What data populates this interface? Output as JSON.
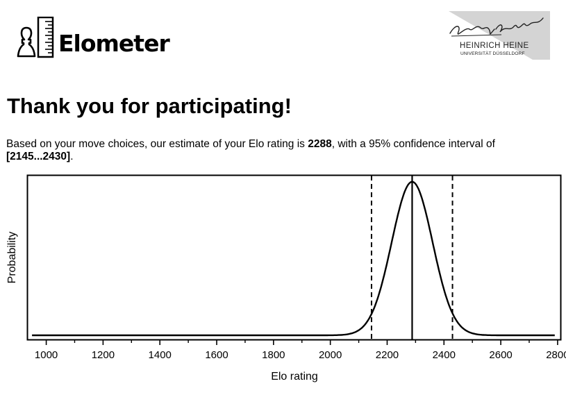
{
  "header": {
    "logo_text": "Elometer",
    "university_name": "HEINRICH HEINE",
    "university_sub": "UNIVERSITÄT DÜSSELDORF",
    "university_signature": "Heinrich Heine"
  },
  "main": {
    "title": "Thank you for participating!",
    "result_prefix": "Based on your move choices, our estimate of your Elo rating is ",
    "estimate": "2288",
    "result_middle": ", with a 95% confidence interval of ",
    "interval": "[2145...2430]",
    "result_suffix": "."
  },
  "chart_data": {
    "type": "line",
    "title": "",
    "xlabel": "Elo rating",
    "ylabel": "Probability",
    "xlim": [
      935,
      2810
    ],
    "ylim": [
      0,
      1.04
    ],
    "xticks": [
      1000,
      1200,
      1400,
      1600,
      1800,
      2000,
      2200,
      2400,
      2600,
      2800
    ],
    "minor_ticks_every": 100,
    "yticks": [],
    "grid": false,
    "series": [
      {
        "name": "",
        "style": "solid",
        "distribution": "normal",
        "mean": 2288,
        "sd": 72,
        "x": [
          950,
          2000,
          2050,
          2100,
          2145,
          2180,
          2220,
          2250,
          2288,
          2320,
          2360,
          2400,
          2430,
          2480,
          2530,
          2600,
          2790
        ],
        "y": [
          0,
          0.001,
          0.004,
          0.033,
          0.107,
          0.244,
          0.64,
          0.87,
          1.0,
          0.9,
          0.58,
          0.25,
          0.112,
          0.016,
          0.002,
          0.0,
          0
        ]
      }
    ],
    "vlines": [
      {
        "x": 2145,
        "style": "dashed",
        "label": "lower 95% bound"
      },
      {
        "x": 2288,
        "style": "solid",
        "label": "estimate"
      },
      {
        "x": 2430,
        "style": "dashed",
        "label": "upper 95% bound"
      }
    ]
  },
  "colors": {
    "text": "#000000",
    "background": "#ffffff",
    "logo_panel": "#d4d4d4"
  }
}
